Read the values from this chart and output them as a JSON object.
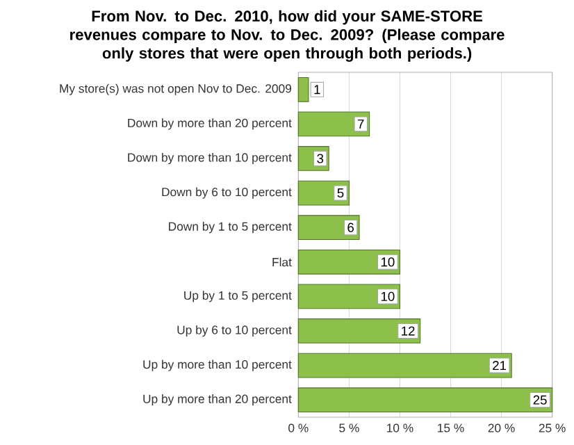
{
  "chart_data": {
    "type": "bar",
    "orientation": "horizontal",
    "title": "From Nov. to Dec. 2010, how did your SAME-STORE revenues compare to Nov. to Dec. 2009? (Please compare only stores that were open through both periods.)",
    "categories": [
      "My store(s) was not open Nov to Dec. 2009",
      "Down by more than 20 percent",
      "Down by more than 10 percent",
      "Down by 6 to 10 percent",
      "Down by 1 to 5 percent",
      "Flat",
      "Up by 1 to 5 percent",
      "Up by 6 to 10 percent",
      "Up by more than 10 percent",
      "Up by more than 20 percent"
    ],
    "values": [
      1,
      7,
      3,
      5,
      6,
      10,
      10,
      12,
      21,
      25
    ],
    "color": "#8cc04b",
    "xlim": [
      0,
      25
    ],
    "xticks": [
      {
        "value": 0,
        "label": "0 %"
      },
      {
        "value": 5,
        "label": "5 %"
      },
      {
        "value": 10,
        "label": "10 %"
      },
      {
        "value": 15,
        "label": "15 %"
      },
      {
        "value": 20,
        "label": "20 %"
      },
      {
        "value": 25,
        "label": "25 %"
      }
    ],
    "grid": "x",
    "data_labels": true
  }
}
